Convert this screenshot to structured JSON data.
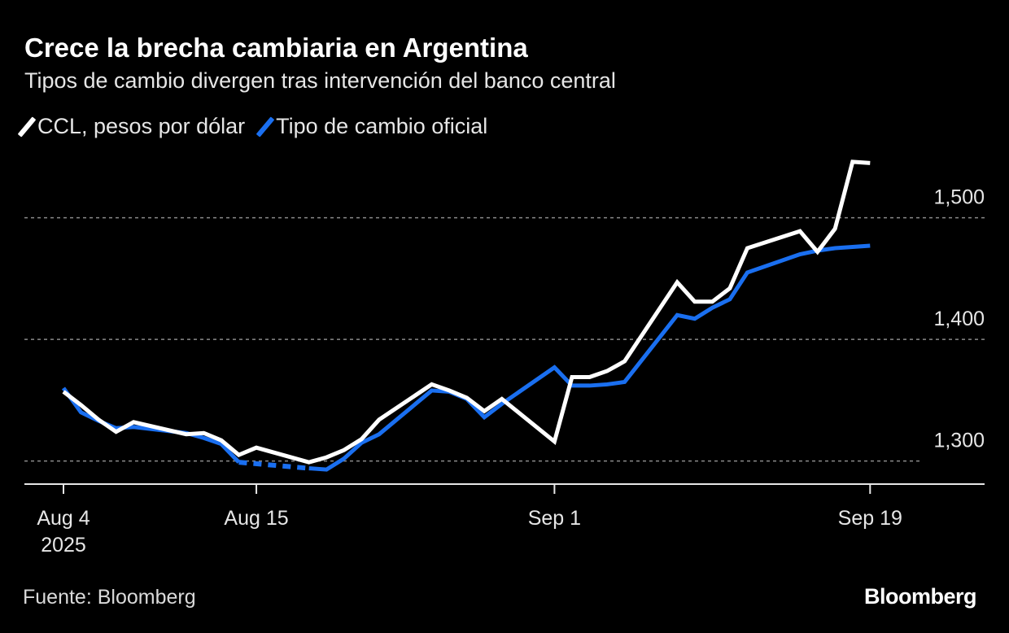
{
  "chart_data": {
    "type": "line",
    "title": "Crece la brecha cambiaria en Argentina",
    "subtitle": "Tipos de cambio divergen tras intervención del banco central",
    "x": [
      "2025-08-04",
      "2025-08-05",
      "2025-08-06",
      "2025-08-07",
      "2025-08-08",
      "2025-08-11",
      "2025-08-12",
      "2025-08-13",
      "2025-08-14",
      "2025-08-15",
      "2025-08-18",
      "2025-08-19",
      "2025-08-20",
      "2025-08-21",
      "2025-08-22",
      "2025-08-25",
      "2025-08-26",
      "2025-08-27",
      "2025-08-28",
      "2025-08-29",
      "2025-09-01",
      "2025-09-02",
      "2025-09-03",
      "2025-09-04",
      "2025-09-05",
      "2025-09-08",
      "2025-09-09",
      "2025-09-10",
      "2025-09-11",
      "2025-09-12",
      "2025-09-15",
      "2025-09-16",
      "2025-09-17",
      "2025-09-18",
      "2025-09-19"
    ],
    "series": [
      {
        "name": "CCL, pesos por dólar",
        "color": "#ffffff",
        "values": [
          1357,
          1346,
          1334,
          1324,
          1332,
          1322,
          1323,
          1317,
          1305,
          1311,
          1299,
          1303,
          1309,
          1318,
          1334,
          1363,
          1358,
          1352,
          1341,
          1351,
          1316,
          1369,
          1369,
          1374,
          1382,
          1447,
          1431,
          1431,
          1442,
          1475,
          1489,
          1472,
          1491,
          1546,
          1545
        ]
      },
      {
        "name": "Tipo de cambio oficial",
        "color": "#1a6ff0",
        "values": [
          1360,
          1340,
          1333,
          1327,
          1328,
          1323,
          1319,
          1314,
          1299,
          null,
          1294,
          1293,
          1302,
          1315,
          1322,
          1358,
          1357,
          1351,
          1336,
          1347,
          1377,
          1362,
          1362,
          1363,
          1365,
          1420,
          1417,
          1426,
          1433,
          1455,
          1470,
          1473,
          1475,
          1476,
          1477
        ]
      }
    ],
    "x_ticks": [
      {
        "date": "2025-08-04",
        "label": "Aug 4",
        "sublabel": "2025"
      },
      {
        "date": "2025-08-15",
        "label": "Aug 15"
      },
      {
        "date": "2025-09-01",
        "label": "Sep 1"
      },
      {
        "date": "2025-09-19",
        "label": "Sep 19"
      }
    ],
    "y_ticks": [
      {
        "value": 1300,
        "label": "1,300"
      },
      {
        "value": 1400,
        "label": "1,400"
      },
      {
        "value": 1500,
        "label": "1,500"
      }
    ],
    "ylim": [
      1281,
      1560
    ],
    "xlim": [
      "2025-08-02",
      "2025-09-22"
    ],
    "grid": "horizontal dotted",
    "legend_position": "top-left",
    "y_axis_side": "right"
  },
  "footer": {
    "source": "Fuente: Bloomberg",
    "logo": "Bloomberg"
  }
}
